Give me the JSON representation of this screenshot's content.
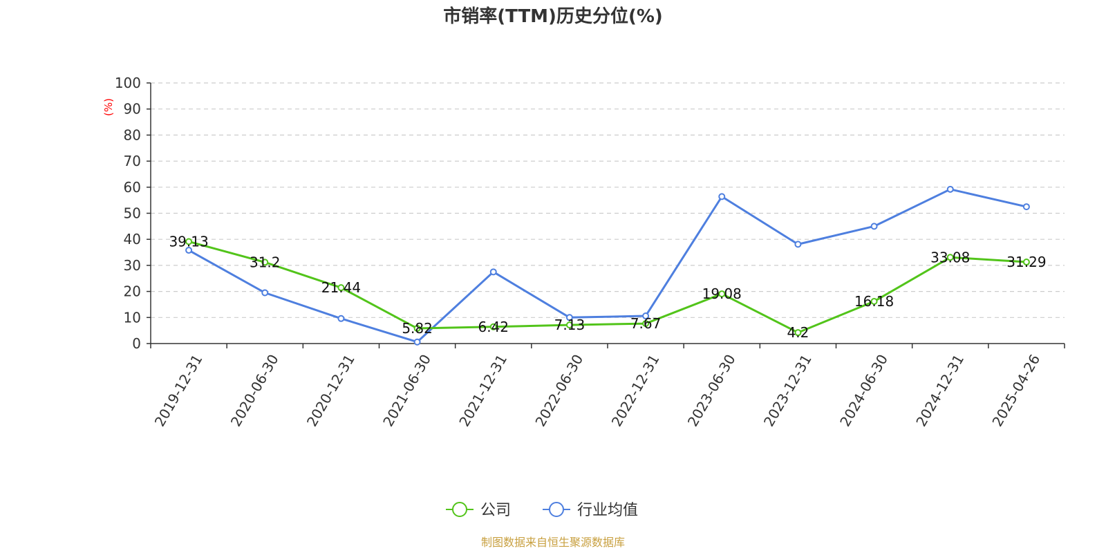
{
  "chart_data": {
    "type": "line",
    "title": "市销率(TTM)历史分位(%)",
    "ylabel": "(%)",
    "ylim": [
      0,
      100
    ],
    "yticks": [
      0,
      10,
      20,
      30,
      40,
      50,
      60,
      70,
      80,
      90,
      100
    ],
    "grid": true,
    "legend_position": "bottom-center",
    "categories": [
      "2019-12-31",
      "2020-06-30",
      "2020-12-31",
      "2021-06-30",
      "2021-12-31",
      "2022-06-30",
      "2022-12-31",
      "2023-06-30",
      "2023-12-31",
      "2024-06-30",
      "2024-12-31",
      "2025-04-26"
    ],
    "series": [
      {
        "name": "公司",
        "color": "#52c41a",
        "values": [
          39.13,
          31.2,
          21.44,
          5.82,
          6.42,
          7.13,
          7.67,
          19.08,
          4.2,
          16.18,
          33.08,
          31.29
        ],
        "labels": [
          "39.13",
          "31.2",
          "21.44",
          "5.82",
          "6.42",
          "7.13",
          "7.67",
          "19.08",
          "4.2",
          "16.18",
          "33.08",
          "31.29"
        ]
      },
      {
        "name": "行业均值",
        "color": "#4e7fdf",
        "values": [
          35.8,
          19.5,
          9.6,
          0.6,
          27.5,
          10.0,
          10.6,
          56.4,
          38.1,
          45.0,
          59.2,
          52.5
        ]
      }
    ],
    "source": "制图数据来自恒生聚源数据库"
  }
}
